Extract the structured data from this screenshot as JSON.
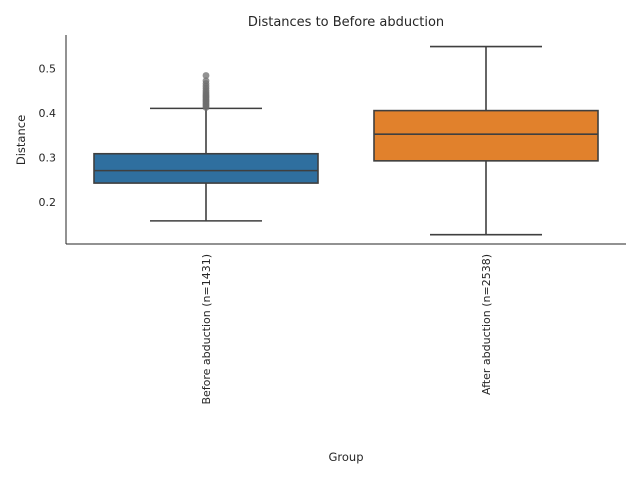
{
  "chart_data": {
    "type": "box",
    "title": "Distances to Before abduction",
    "xlabel": "Group",
    "ylabel": "Distance",
    "ylim": [
      0.105,
      0.575
    ],
    "yticks": [
      0.2,
      0.3,
      0.4,
      0.5
    ],
    "ytick_labels": [
      "0.2",
      "0.3",
      "0.4",
      "0.5"
    ],
    "grid": false,
    "categories": [
      "Before abduction (n=1431)",
      "After abduction (n=2538)"
    ],
    "boxes": [
      {
        "category": "Before abduction (n=1431)",
        "color": "#2f6f9f",
        "whisker_low": 0.157,
        "q1": 0.242,
        "median": 0.27,
        "q3": 0.308,
        "whisker_high": 0.41,
        "outliers": [
          0.412,
          0.415,
          0.418,
          0.421,
          0.424,
          0.427,
          0.43,
          0.433,
          0.436,
          0.439,
          0.442,
          0.446,
          0.45,
          0.455,
          0.46,
          0.466,
          0.472,
          0.484
        ]
      },
      {
        "category": "After abduction (n=2538)",
        "color": "#e1812c",
        "whisker_low": 0.126,
        "q1": 0.292,
        "median": 0.352,
        "q3": 0.405,
        "whisker_high": 0.549,
        "outliers": []
      }
    ]
  }
}
